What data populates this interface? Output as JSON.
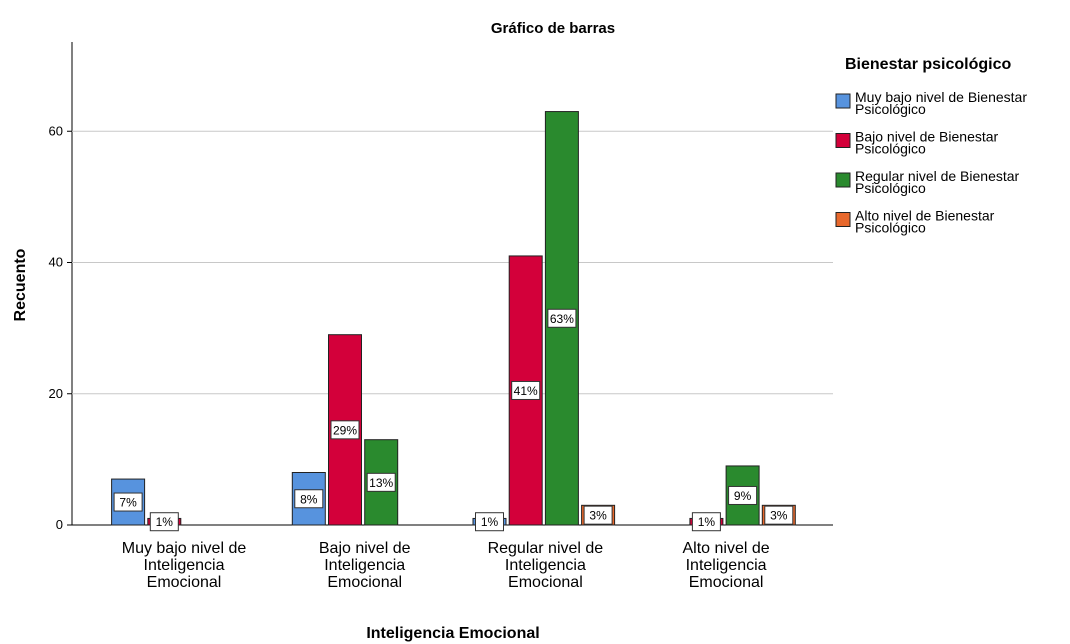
{
  "chart_data": {
    "type": "bar",
    "title": "Gráfico de barras",
    "x_label": "Inteligencia Emocional",
    "y_label": "Recuento",
    "legend_title": "Bienestar psicológico",
    "legend_position": "right",
    "categories": [
      "Muy bajo nivel de Inteligencia Emocional",
      "Bajo nivel de Inteligencia Emocional",
      "Regular nivel de Inteligencia Emocional",
      "Alto nivel de Inteligencia Emocional"
    ],
    "series": [
      {
        "name": "Muy bajo nivel de Bienestar Psicológico",
        "color": "#5793de",
        "values": [
          7,
          8,
          1,
          null
        ],
        "value_labels": [
          "7%",
          "8%",
          "1%",
          null
        ]
      },
      {
        "name": "Bajo nivel de Bienestar Psicológico",
        "color": "#d3003a",
        "values": [
          1,
          29,
          41,
          1
        ],
        "value_labels": [
          "1%",
          "29%",
          "41%",
          "1%"
        ]
      },
      {
        "name": "Regular nivel de Bienestar Psicológico",
        "color": "#2a8a2e",
        "values": [
          null,
          13,
          63,
          9
        ],
        "value_labels": [
          null,
          "13%",
          "63%",
          "9%"
        ]
      },
      {
        "name": "Alto nivel de Bienestar Psicológico",
        "color": "#e8682c",
        "values": [
          null,
          null,
          3,
          3
        ],
        "value_labels": [
          null,
          null,
          "3%",
          "3%"
        ]
      }
    ],
    "ylim": [
      0,
      73.6
    ],
    "yticks": [
      0,
      20,
      40,
      60
    ],
    "grid": true
  }
}
